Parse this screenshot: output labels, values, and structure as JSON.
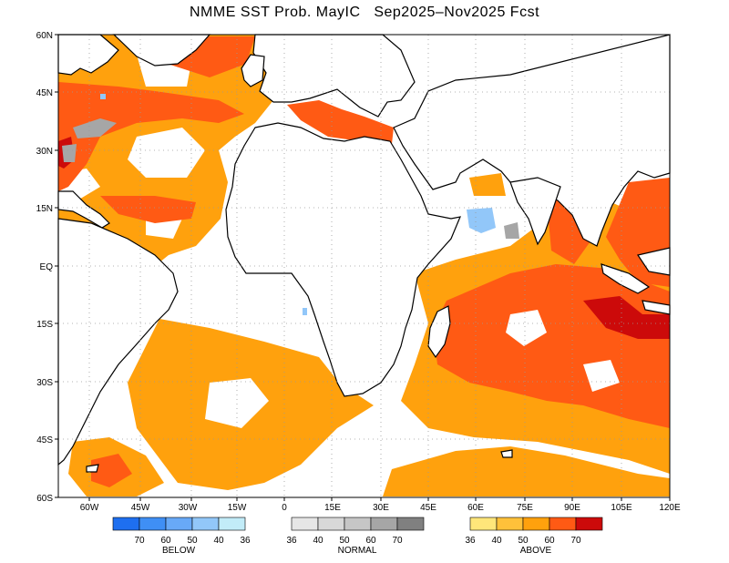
{
  "title": "NMME SST Prob. MayIC   Sep2025–Nov2025 Fcst",
  "lat_labels": [
    "60N",
    "45N",
    "30N",
    "15N",
    "EQ",
    "15S",
    "30S",
    "45S",
    "60S"
  ],
  "lon_labels": [
    "60W",
    "45W",
    "30W",
    "15W",
    "0",
    "15E",
    "30E",
    "45E",
    "60E",
    "75E",
    "90E",
    "105E",
    "120E"
  ],
  "legend": {
    "below": {
      "title": "BELOW",
      "ticks": [
        "70",
        "60",
        "50",
        "40",
        "36"
      ],
      "colors": [
        "#1e6ff0",
        "#3f8ff5",
        "#68a9f7",
        "#92c7f9",
        "#c2ecf8"
      ]
    },
    "normal": {
      "title": "NORMAL",
      "ticks": [
        "36",
        "40",
        "50",
        "60",
        "70"
      ],
      "colors": [
        "#e6e6e6",
        "#d8d8d8",
        "#c6c6c6",
        "#a6a6a6",
        "#808080"
      ]
    },
    "above": {
      "title": "ABOVE",
      "ticks": [
        "36",
        "40",
        "50",
        "60",
        "70"
      ],
      "colors": [
        "#ffe67a",
        "#ffc13a",
        "#ffa10d",
        "#ff5a14",
        "#cc0a0a"
      ]
    }
  }
}
